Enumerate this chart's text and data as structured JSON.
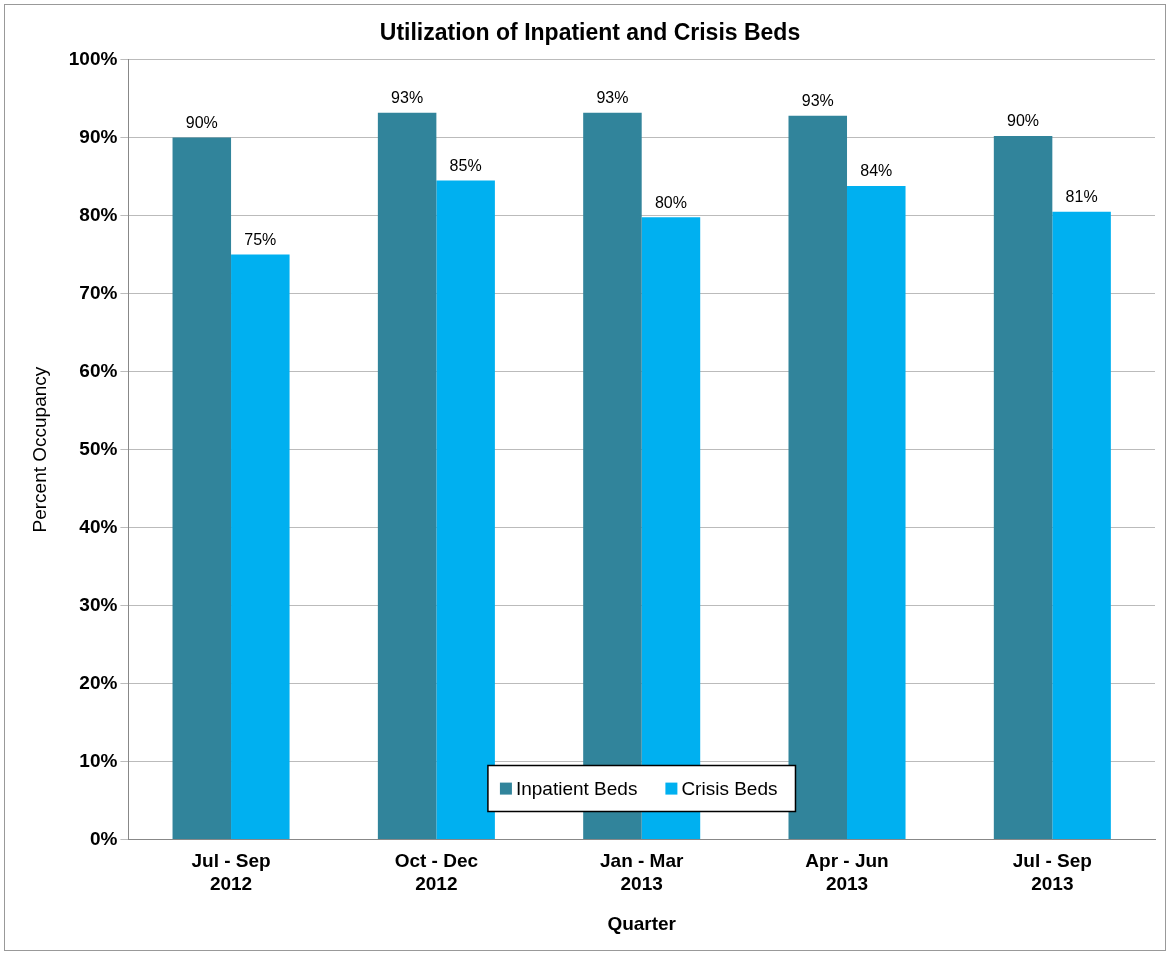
{
  "chart_data": {
    "type": "bar",
    "title": "Utilization of Inpatient and Crisis Beds",
    "xlabel": "Quarter",
    "ylabel": "Percent Occupancy",
    "categories": [
      "Jul - Sep\n2012",
      "Oct - Dec\n2012",
      "Jan - Mar\n2013",
      "Apr - Jun\n2013",
      "Jul - Sep\n2013"
    ],
    "series": [
      {
        "name": "Inpatient Beds",
        "color": "#31849b",
        "values": [
          90,
          93.2,
          93.2,
          92.8,
          90.2
        ],
        "value_labels": [
          "90%",
          "93%",
          "93%",
          "93%",
          "90%"
        ]
      },
      {
        "name": "Crisis Beds",
        "color": "#00b0f0",
        "values": [
          75,
          84.5,
          79.8,
          83.8,
          80.5
        ],
        "value_labels": [
          "75%",
          "85%",
          "80%",
          "84%",
          "81%"
        ]
      }
    ],
    "ylim": [
      0,
      100
    ],
    "yticks": [
      {
        "value": 0,
        "label": "0%"
      },
      {
        "value": 10,
        "label": "10%"
      },
      {
        "value": 20,
        "label": "20%"
      },
      {
        "value": 30,
        "label": "30%"
      },
      {
        "value": 40,
        "label": "40%"
      },
      {
        "value": 50,
        "label": "50%"
      },
      {
        "value": 60,
        "label": "60%"
      },
      {
        "value": 70,
        "label": "70%"
      },
      {
        "value": 80,
        "label": "80%"
      },
      {
        "value": 90,
        "label": "90%"
      },
      {
        "value": 100,
        "label": "100%"
      }
    ],
    "grid": "y",
    "legend": "bottom"
  }
}
